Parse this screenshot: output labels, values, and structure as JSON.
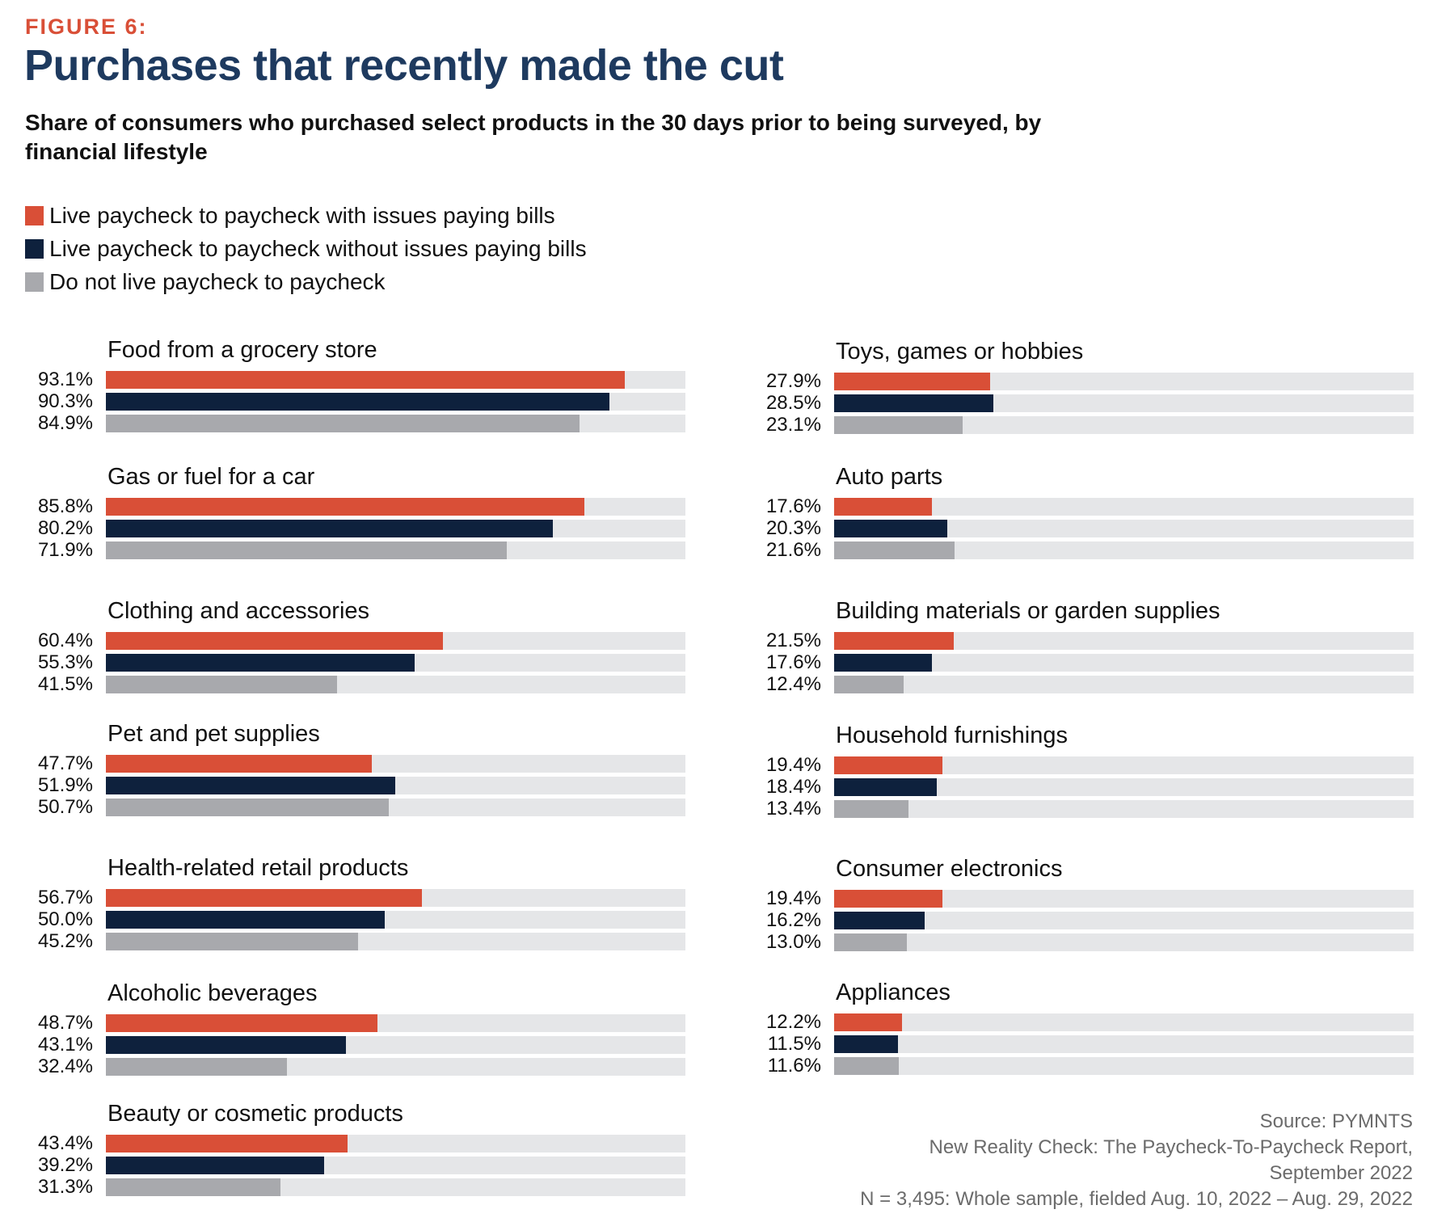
{
  "header": {
    "figure_label": "FIGURE 6:",
    "title": "Purchases that recently made the cut",
    "subtitle": "Share of consumers who purchased select products in the 30 days prior to being surveyed, by financial lifestyle"
  },
  "colors": {
    "with_issues": "#d94f37",
    "without_issues": "#0e213d",
    "not_p2p": "#a8a9ad",
    "track": "#e5e6e8",
    "title": "#1e3a5f",
    "figure_label": "#d94f37"
  },
  "legend": [
    {
      "label": "Live paycheck to paycheck with issues paying bills",
      "color": "#d94f37"
    },
    {
      "label": "Live paycheck to paycheck without issues paying bills",
      "color": "#0e213d"
    },
    {
      "label": "Do not live paycheck to paycheck",
      "color": "#a8a9ad"
    }
  ],
  "chart_data": {
    "type": "bar",
    "orientation": "horizontal",
    "title": "Purchases that recently made the cut",
    "subtitle": "Share of consumers who purchased select products in the 30 days prior to being surveyed, by financial lifestyle",
    "xlabel": "",
    "ylabel": "",
    "xlim": [
      0,
      100
    ],
    "unit": "%",
    "grid": false,
    "legend_position": "top-left",
    "series": [
      {
        "name": "Live paycheck to paycheck with issues paying bills",
        "color": "#d94f37"
      },
      {
        "name": "Live paycheck to paycheck without issues paying bills",
        "color": "#0e213d"
      },
      {
        "name": "Do not live paycheck to paycheck",
        "color": "#a8a9ad"
      }
    ],
    "categories": [
      {
        "name": "Food from a grocery store",
        "column": "left",
        "values": [
          93.1,
          90.3,
          84.9
        ],
        "labels": [
          "93.1%",
          "90.3%",
          "84.9%"
        ]
      },
      {
        "name": "Gas or fuel for a car",
        "column": "left",
        "values": [
          85.8,
          80.2,
          71.9
        ],
        "labels": [
          "85.8%",
          "80.2%",
          "71.9%"
        ]
      },
      {
        "name": "Clothing and accessories",
        "column": "left",
        "values": [
          60.4,
          55.3,
          41.5
        ],
        "labels": [
          "60.4%",
          "55.3%",
          "41.5%"
        ]
      },
      {
        "name": "Pet and pet supplies",
        "column": "left",
        "values": [
          47.7,
          51.9,
          50.7
        ],
        "labels": [
          "47.7%",
          "51.9%",
          "50.7%"
        ]
      },
      {
        "name": "Health-related retail products",
        "column": "left",
        "values": [
          56.7,
          50.0,
          45.2
        ],
        "labels": [
          "56.7%",
          "50.0%",
          "45.2%"
        ]
      },
      {
        "name": "Alcoholic beverages",
        "column": "left",
        "values": [
          48.7,
          43.1,
          32.4
        ],
        "labels": [
          "48.7%",
          "43.1%",
          "32.4%"
        ]
      },
      {
        "name": "Beauty or cosmetic products",
        "column": "left",
        "values": [
          43.4,
          39.2,
          31.3
        ],
        "labels": [
          "43.4%",
          "39.2%",
          "31.3%"
        ]
      },
      {
        "name": "Toys, games or hobbies",
        "column": "right",
        "values": [
          27.9,
          28.5,
          23.1
        ],
        "labels": [
          "27.9%",
          "28.5%",
          "23.1%"
        ]
      },
      {
        "name": "Auto parts",
        "column": "right",
        "values": [
          17.6,
          20.3,
          21.6
        ],
        "labels": [
          "17.6%",
          "20.3%",
          "21.6%"
        ]
      },
      {
        "name": "Building materials or garden supplies",
        "column": "right",
        "values": [
          21.5,
          17.6,
          12.4
        ],
        "labels": [
          "21.5%",
          "17.6%",
          "12.4%"
        ]
      },
      {
        "name": "Household furnishings",
        "column": "right",
        "values": [
          19.4,
          18.4,
          13.4
        ],
        "labels": [
          "19.4%",
          "18.4%",
          "13.4%"
        ]
      },
      {
        "name": "Consumer electronics",
        "column": "right",
        "values": [
          19.4,
          16.2,
          13.0
        ],
        "labels": [
          "19.4%",
          "16.2%",
          "13.0%"
        ]
      },
      {
        "name": "Appliances",
        "column": "right",
        "values": [
          12.2,
          11.5,
          11.6
        ],
        "labels": [
          "12.2%",
          "11.5%",
          "11.6%"
        ]
      }
    ]
  },
  "source": {
    "line1": "Source: PYMNTS",
    "line2": "New Reality Check: The Paycheck-To-Paycheck Report,",
    "line3": "September 2022",
    "line4": "N = 3,495: Whole sample, fielded Aug. 10, 2022 – Aug. 29, 2022"
  }
}
